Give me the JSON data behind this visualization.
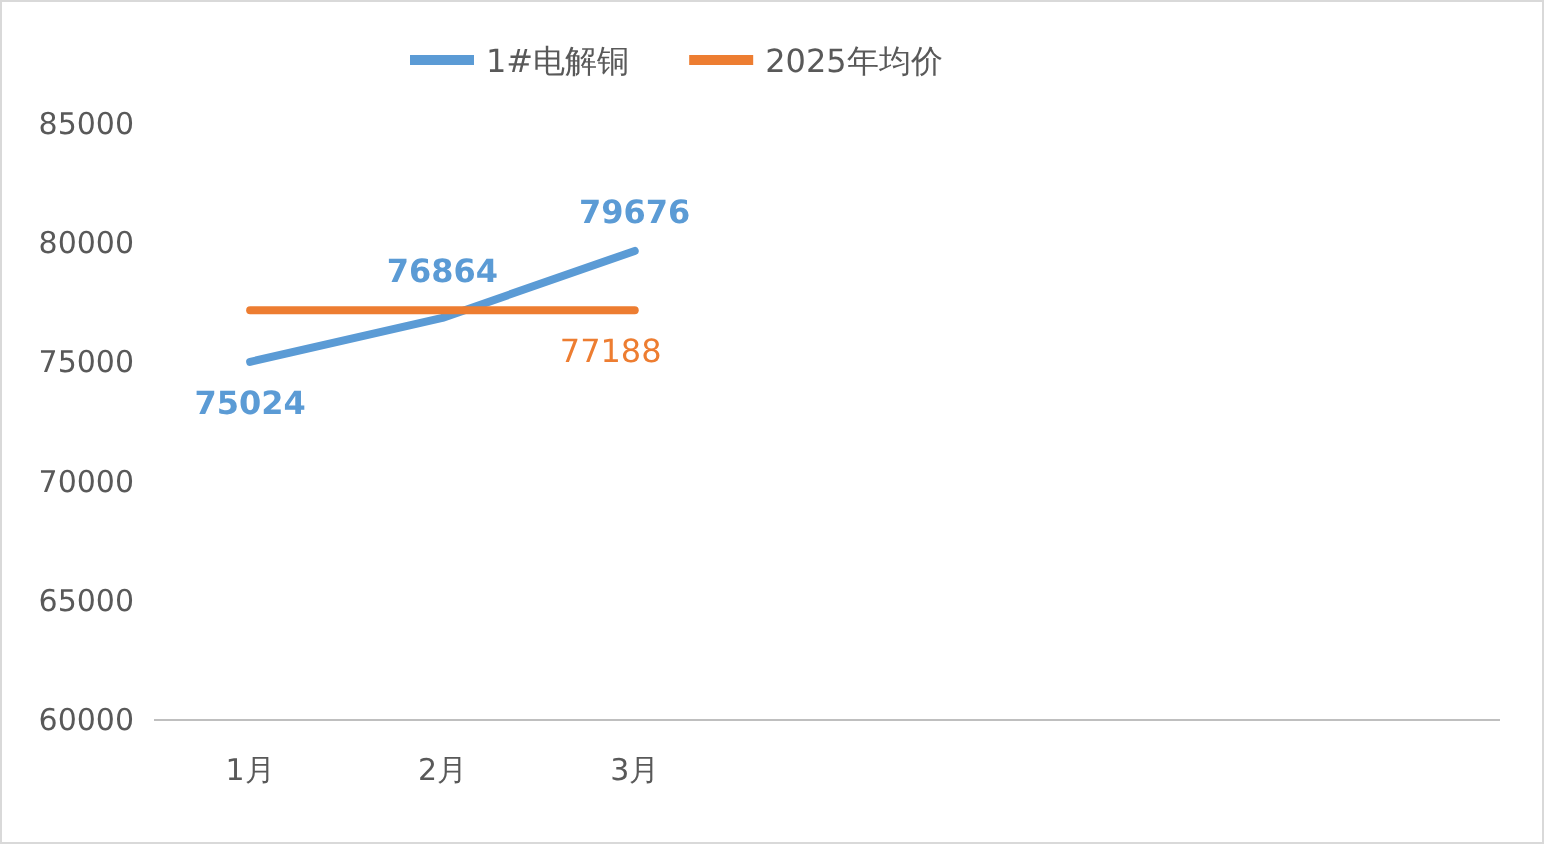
{
  "chart_data": {
    "type": "line",
    "categories": [
      "1月",
      "2月",
      "3月",
      null,
      null,
      null,
      null
    ],
    "series": [
      {
        "name": "1#电解铜",
        "color": "#5b9bd5",
        "values": [
          75024,
          76864,
          79676,
          null,
          null,
          null,
          null
        ],
        "value_labels": [
          "75024",
          "76864",
          "79676",
          null,
          null,
          null,
          null
        ]
      },
      {
        "name": "2025年均价",
        "color": "#ed7d31",
        "values": [
          77188,
          77188,
          77188,
          null,
          null,
          null,
          null
        ],
        "value_labels": [
          null,
          null,
          "77188",
          null,
          null,
          null,
          null
        ]
      }
    ],
    "ylim": [
      60000,
      85000
    ],
    "yticks": [
      60000,
      65000,
      70000,
      75000,
      80000,
      85000
    ],
    "legend": "top",
    "grid": false
  }
}
